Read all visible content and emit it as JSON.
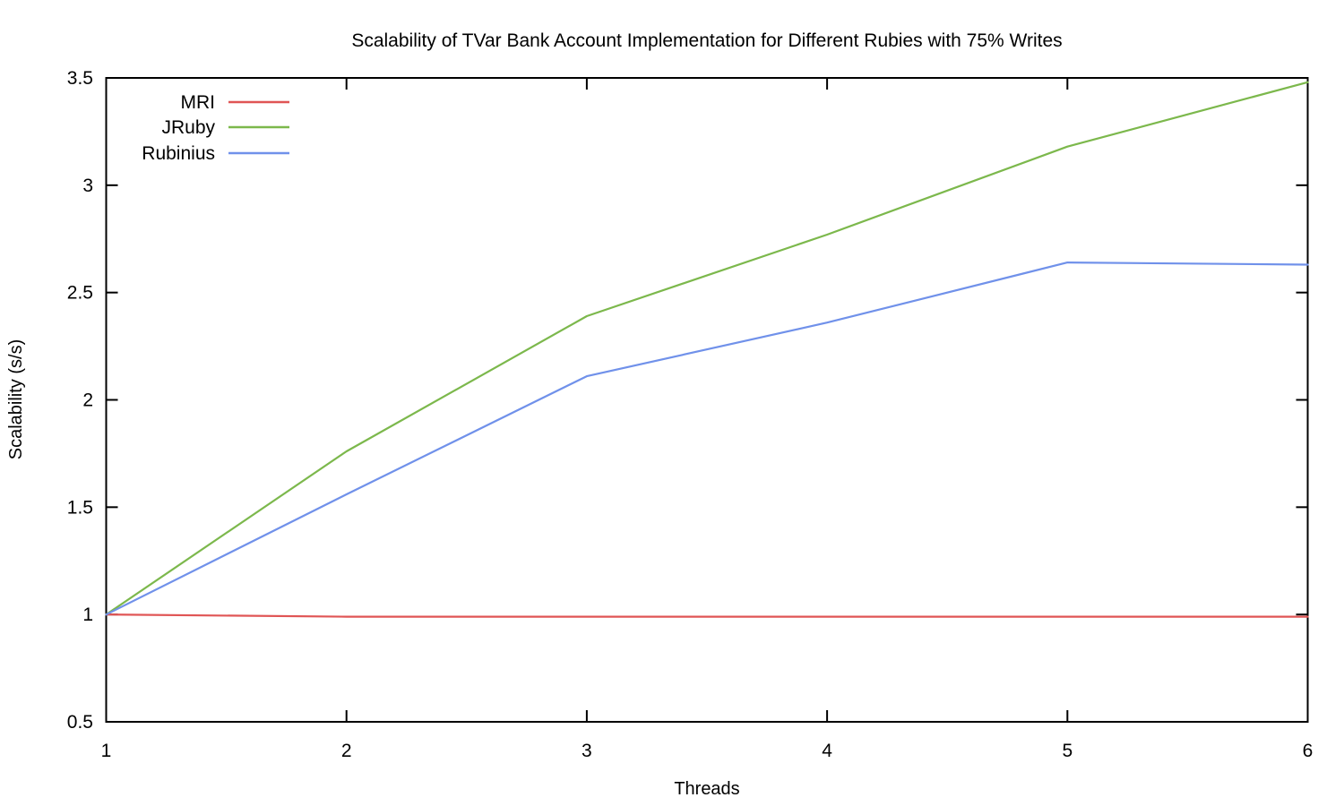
{
  "chart_data": {
    "type": "line",
    "title": "Scalability of TVar Bank Account Implementation for Different Rubies with 75% Writes",
    "xlabel": "Threads",
    "ylabel": "Scalability (s/s)",
    "x": [
      1,
      2,
      3,
      4,
      5,
      6
    ],
    "xlim": [
      1,
      6
    ],
    "ylim": [
      0.5,
      3.5
    ],
    "x_ticks": [
      1,
      2,
      3,
      4,
      5,
      6
    ],
    "x_tick_labels": [
      "1",
      "2",
      "3",
      "4",
      "5",
      "6"
    ],
    "y_ticks": [
      0.5,
      1,
      1.5,
      2,
      2.5,
      3,
      3.5
    ],
    "y_tick_labels": [
      "0.5",
      "1",
      "1.5",
      "2",
      "2.5",
      "3",
      "3.5"
    ],
    "grid": false,
    "legend_position": "top-left-inside",
    "background_color": "#ffffff",
    "border_color": "#000000",
    "series": [
      {
        "name": "MRI",
        "color": "#e05555",
        "values": [
          1.0,
          0.99,
          0.99,
          0.99,
          0.99,
          0.99
        ]
      },
      {
        "name": "JRuby",
        "color": "#7cb84c",
        "values": [
          1.0,
          1.76,
          2.39,
          2.77,
          3.18,
          3.48
        ]
      },
      {
        "name": "Rubinius",
        "color": "#7091ea",
        "values": [
          1.0,
          1.56,
          2.11,
          2.36,
          2.64,
          2.63
        ]
      }
    ]
  }
}
